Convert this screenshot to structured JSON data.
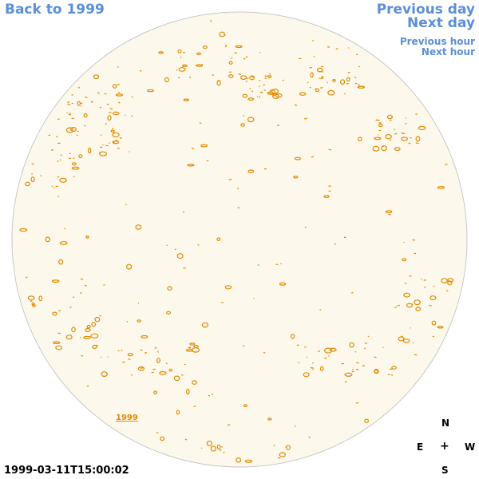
{
  "nav": {
    "back": "Back to 1999",
    "previous_day": "Previous day",
    "next_day": "Next day",
    "previous_hour": "Previous hour",
    "next_hour": "Next hour"
  },
  "year_link": "1999",
  "timestamp": "1999-03-11T15:00:02",
  "compass": {
    "n": "N",
    "e": "E",
    "center": "+",
    "w": "W",
    "s": "S"
  },
  "colors": {
    "link": "#5b8fd6",
    "disk_fill": "#fdf8ec",
    "disk_border": "#c8c8c8",
    "contour": "#e08a00"
  }
}
